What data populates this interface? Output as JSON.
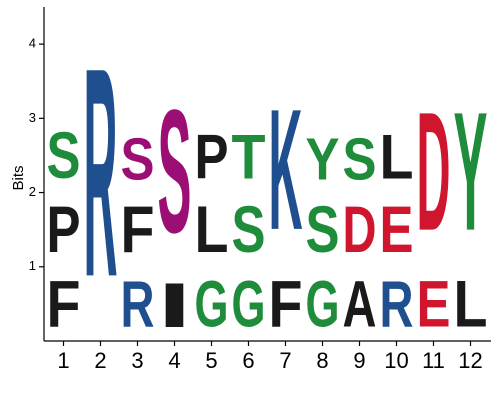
{
  "chart_data": {
    "type": "sequence-logo",
    "title": "",
    "xlabel": "",
    "ylabel": "Bits",
    "ylim": [
      0,
      4.5
    ],
    "yticks": [
      1,
      2,
      3,
      4
    ],
    "grid": false,
    "colors": {
      "black": "#1a1a1a",
      "green": "#1e8c3a",
      "blue": "#1f4f8f",
      "purple": "#9b0f74",
      "red": "#d0152e"
    },
    "positions": [
      {
        "label": "1",
        "stack": [
          {
            "letter": "F",
            "height": 1.0,
            "color": "#1a1a1a"
          },
          {
            "letter": "P",
            "height": 1.0,
            "color": "#1a1a1a"
          },
          {
            "letter": "S",
            "height": 1.0,
            "color": "#1e8c3a"
          }
        ]
      },
      {
        "label": "2",
        "stack": [
          {
            "letter": "R",
            "height": 4.5,
            "color": "#1f4f8f"
          }
        ]
      },
      {
        "label": "3",
        "stack": [
          {
            "letter": "R",
            "height": 1.0,
            "color": "#1f4f8f"
          },
          {
            "letter": "F",
            "height": 1.0,
            "color": "#1a1a1a"
          },
          {
            "letter": "S",
            "height": 0.9,
            "color": "#9b0f74"
          }
        ]
      },
      {
        "label": "4",
        "stack": [
          {
            "letter": "I",
            "height": 0.95,
            "color": "#1a1a1a"
          },
          {
            "letter": "S",
            "height": 2.65,
            "color": "#9b0f74"
          }
        ]
      },
      {
        "label": "5",
        "stack": [
          {
            "letter": "G",
            "height": 1.0,
            "color": "#1e8c3a"
          },
          {
            "letter": "L",
            "height": 1.0,
            "color": "#1a1a1a"
          },
          {
            "letter": "P",
            "height": 0.95,
            "color": "#1a1a1a"
          }
        ]
      },
      {
        "label": "6",
        "stack": [
          {
            "letter": "G",
            "height": 1.0,
            "color": "#1e8c3a"
          },
          {
            "letter": "S",
            "height": 1.0,
            "color": "#1e8c3a"
          },
          {
            "letter": "T",
            "height": 0.95,
            "color": "#1e8c3a"
          }
        ]
      },
      {
        "label": "7",
        "stack": [
          {
            "letter": "F",
            "height": 1.0,
            "color": "#1a1a1a"
          },
          {
            "letter": "K",
            "height": 2.6,
            "color": "#1f4f8f"
          }
        ]
      },
      {
        "label": "8",
        "stack": [
          {
            "letter": "G",
            "height": 1.0,
            "color": "#1e8c3a"
          },
          {
            "letter": "S",
            "height": 1.0,
            "color": "#1e8c3a"
          },
          {
            "letter": "Y",
            "height": 0.9,
            "color": "#1e8c3a"
          }
        ]
      },
      {
        "label": "9",
        "stack": [
          {
            "letter": "A",
            "height": 1.0,
            "color": "#1a1a1a"
          },
          {
            "letter": "D",
            "height": 1.0,
            "color": "#d0152e"
          },
          {
            "letter": "S",
            "height": 0.9,
            "color": "#1e8c3a"
          }
        ]
      },
      {
        "label": "10",
        "stack": [
          {
            "letter": "R",
            "height": 1.0,
            "color": "#1f4f8f"
          },
          {
            "letter": "E",
            "height": 1.0,
            "color": "#d0152e"
          },
          {
            "letter": "L",
            "height": 0.95,
            "color": "#1a1a1a"
          }
        ]
      },
      {
        "label": "11",
        "stack": [
          {
            "letter": "E",
            "height": 1.0,
            "color": "#d0152e"
          },
          {
            "letter": "D",
            "height": 2.55,
            "color": "#d0152e"
          }
        ]
      },
      {
        "label": "12",
        "stack": [
          {
            "letter": "L",
            "height": 1.0,
            "color": "#1a1a1a"
          },
          {
            "letter": "Y",
            "height": 2.55,
            "color": "#1e8c3a"
          }
        ]
      }
    ]
  }
}
